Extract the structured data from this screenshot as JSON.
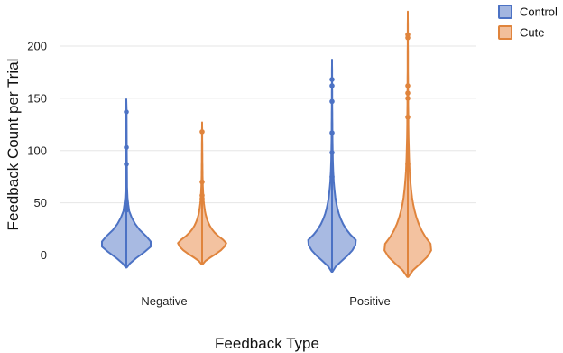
{
  "chart_data": {
    "type": "violin",
    "title": "",
    "xlabel": "Feedback Type",
    "ylabel": "Feedback Count per Trial",
    "categories": [
      "Negative",
      "Positive"
    ],
    "ylim": [
      -20,
      235
    ],
    "yticks": [
      0,
      50,
      100,
      150,
      200
    ],
    "grid": true,
    "legend": "top-right",
    "series": [
      {
        "name": "Control",
        "color": "#4c72c4",
        "fill": "#a3b6e0",
        "violins": [
          {
            "category": "Negative",
            "min": -12,
            "max": 149,
            "points": [
              137,
              103,
              87,
              49,
              46,
              43
            ],
            "profile": [
              [
                -12,
                0.02
              ],
              [
                -8,
                0.15
              ],
              [
                -3,
                0.4
              ],
              [
                3,
                0.75
              ],
              [
                8,
                1.0
              ],
              [
                13,
                1.0
              ],
              [
                18,
                0.82
              ],
              [
                24,
                0.55
              ],
              [
                30,
                0.36
              ],
              [
                36,
                0.22
              ],
              [
                42,
                0.12
              ],
              [
                48,
                0.08
              ],
              [
                55,
                0.05
              ],
              [
                65,
                0.03
              ],
              [
                80,
                0.025
              ],
              [
                100,
                0.02
              ],
              [
                120,
                0.015
              ],
              [
                140,
                0.01
              ],
              [
                149,
                0.0
              ]
            ]
          },
          {
            "category": "Positive",
            "min": -16,
            "max": 187,
            "points": [
              168,
              162,
              147,
              117,
              98,
              75
            ]
          }
        ]
      },
      {
        "name": "Cute",
        "color": "#e0843c",
        "fill": "#f2bf9b",
        "violins": [
          {
            "category": "Negative",
            "min": -9,
            "max": 127,
            "points": [
              118,
              70,
              57,
              54
            ]
          },
          {
            "category": "Positive",
            "min": -21,
            "max": 233,
            "points": [
              211,
              208,
              162,
              155,
              150,
              132,
              87
            ]
          }
        ]
      }
    ]
  }
}
